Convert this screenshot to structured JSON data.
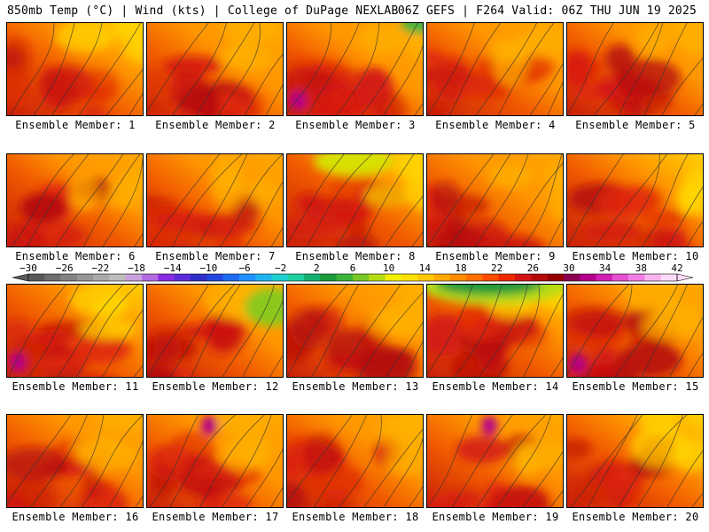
{
  "header": {
    "left": "850mb Temp (°C) | Wind (kts) | College of DuPage NEXLAB",
    "right": "06Z GEFS | F264 Valid: 06Z THU JUN 19 2025"
  },
  "member_label_prefix": "Ensemble Member:",
  "members": [
    {
      "number": "1",
      "label": "Ensemble Member: 1"
    },
    {
      "number": "2",
      "label": "Ensemble Member: 2"
    },
    {
      "number": "3",
      "label": "Ensemble Member: 3"
    },
    {
      "number": "4",
      "label": "Ensemble Member: 4"
    },
    {
      "number": "5",
      "label": "Ensemble Member: 5"
    },
    {
      "number": "6",
      "label": "Ensemble Member: 6"
    },
    {
      "number": "7",
      "label": "Ensemble Member: 7"
    },
    {
      "number": "8",
      "label": "Ensemble Member: 8"
    },
    {
      "number": "9",
      "label": "Ensemble Member: 9"
    },
    {
      "number": "10",
      "label": "Ensemble Member: 10"
    },
    {
      "number": "11",
      "label": "Ensemble Member: 11"
    },
    {
      "number": "12",
      "label": "Ensemble Member: 12"
    },
    {
      "number": "13",
      "label": "Ensemble Member: 13"
    },
    {
      "number": "14",
      "label": "Ensemble Member: 14"
    },
    {
      "number": "15",
      "label": "Ensemble Member: 15"
    },
    {
      "number": "16",
      "label": "Ensemble Member: 16"
    },
    {
      "number": "17",
      "label": "Ensemble Member: 17"
    },
    {
      "number": "18",
      "label": "Ensemble Member: 18"
    },
    {
      "number": "19",
      "label": "Ensemble Member: 19"
    },
    {
      "number": "20",
      "label": "Ensemble Member: 20"
    }
  ],
  "colorbar": {
    "tick_labels": [
      "−30",
      "−26",
      "−22",
      "−18",
      "−14",
      "−10",
      "−6",
      "−2",
      "2",
      "6",
      "10",
      "14",
      "18",
      "22",
      "26",
      "30",
      "34",
      "38",
      "42"
    ],
    "colors": [
      "#5a5a5a",
      "#6e6e6e",
      "#828282",
      "#969696",
      "#aaaaaa",
      "#bdbdbd",
      "#c9a0dc",
      "#b36ae2",
      "#8a2be2",
      "#5b2bd9",
      "#2f2fc8",
      "#2346e0",
      "#1e6cf2",
      "#1e90ff",
      "#1fb4f0",
      "#20d0d0",
      "#1fcfa0",
      "#14b070",
      "#1a9a3a",
      "#3cb43c",
      "#78c828",
      "#b4dc14",
      "#f0f000",
      "#ffe000",
      "#ffc800",
      "#ffaa00",
      "#ff8c00",
      "#ff6e00",
      "#ff4c00",
      "#f02800",
      "#d21414",
      "#b40a0a",
      "#960000",
      "#8c0050",
      "#b4008c",
      "#d21eb4",
      "#e650d2",
      "#f07ee6",
      "#f8b4f0",
      "#fcdcfa"
    ]
  }
}
